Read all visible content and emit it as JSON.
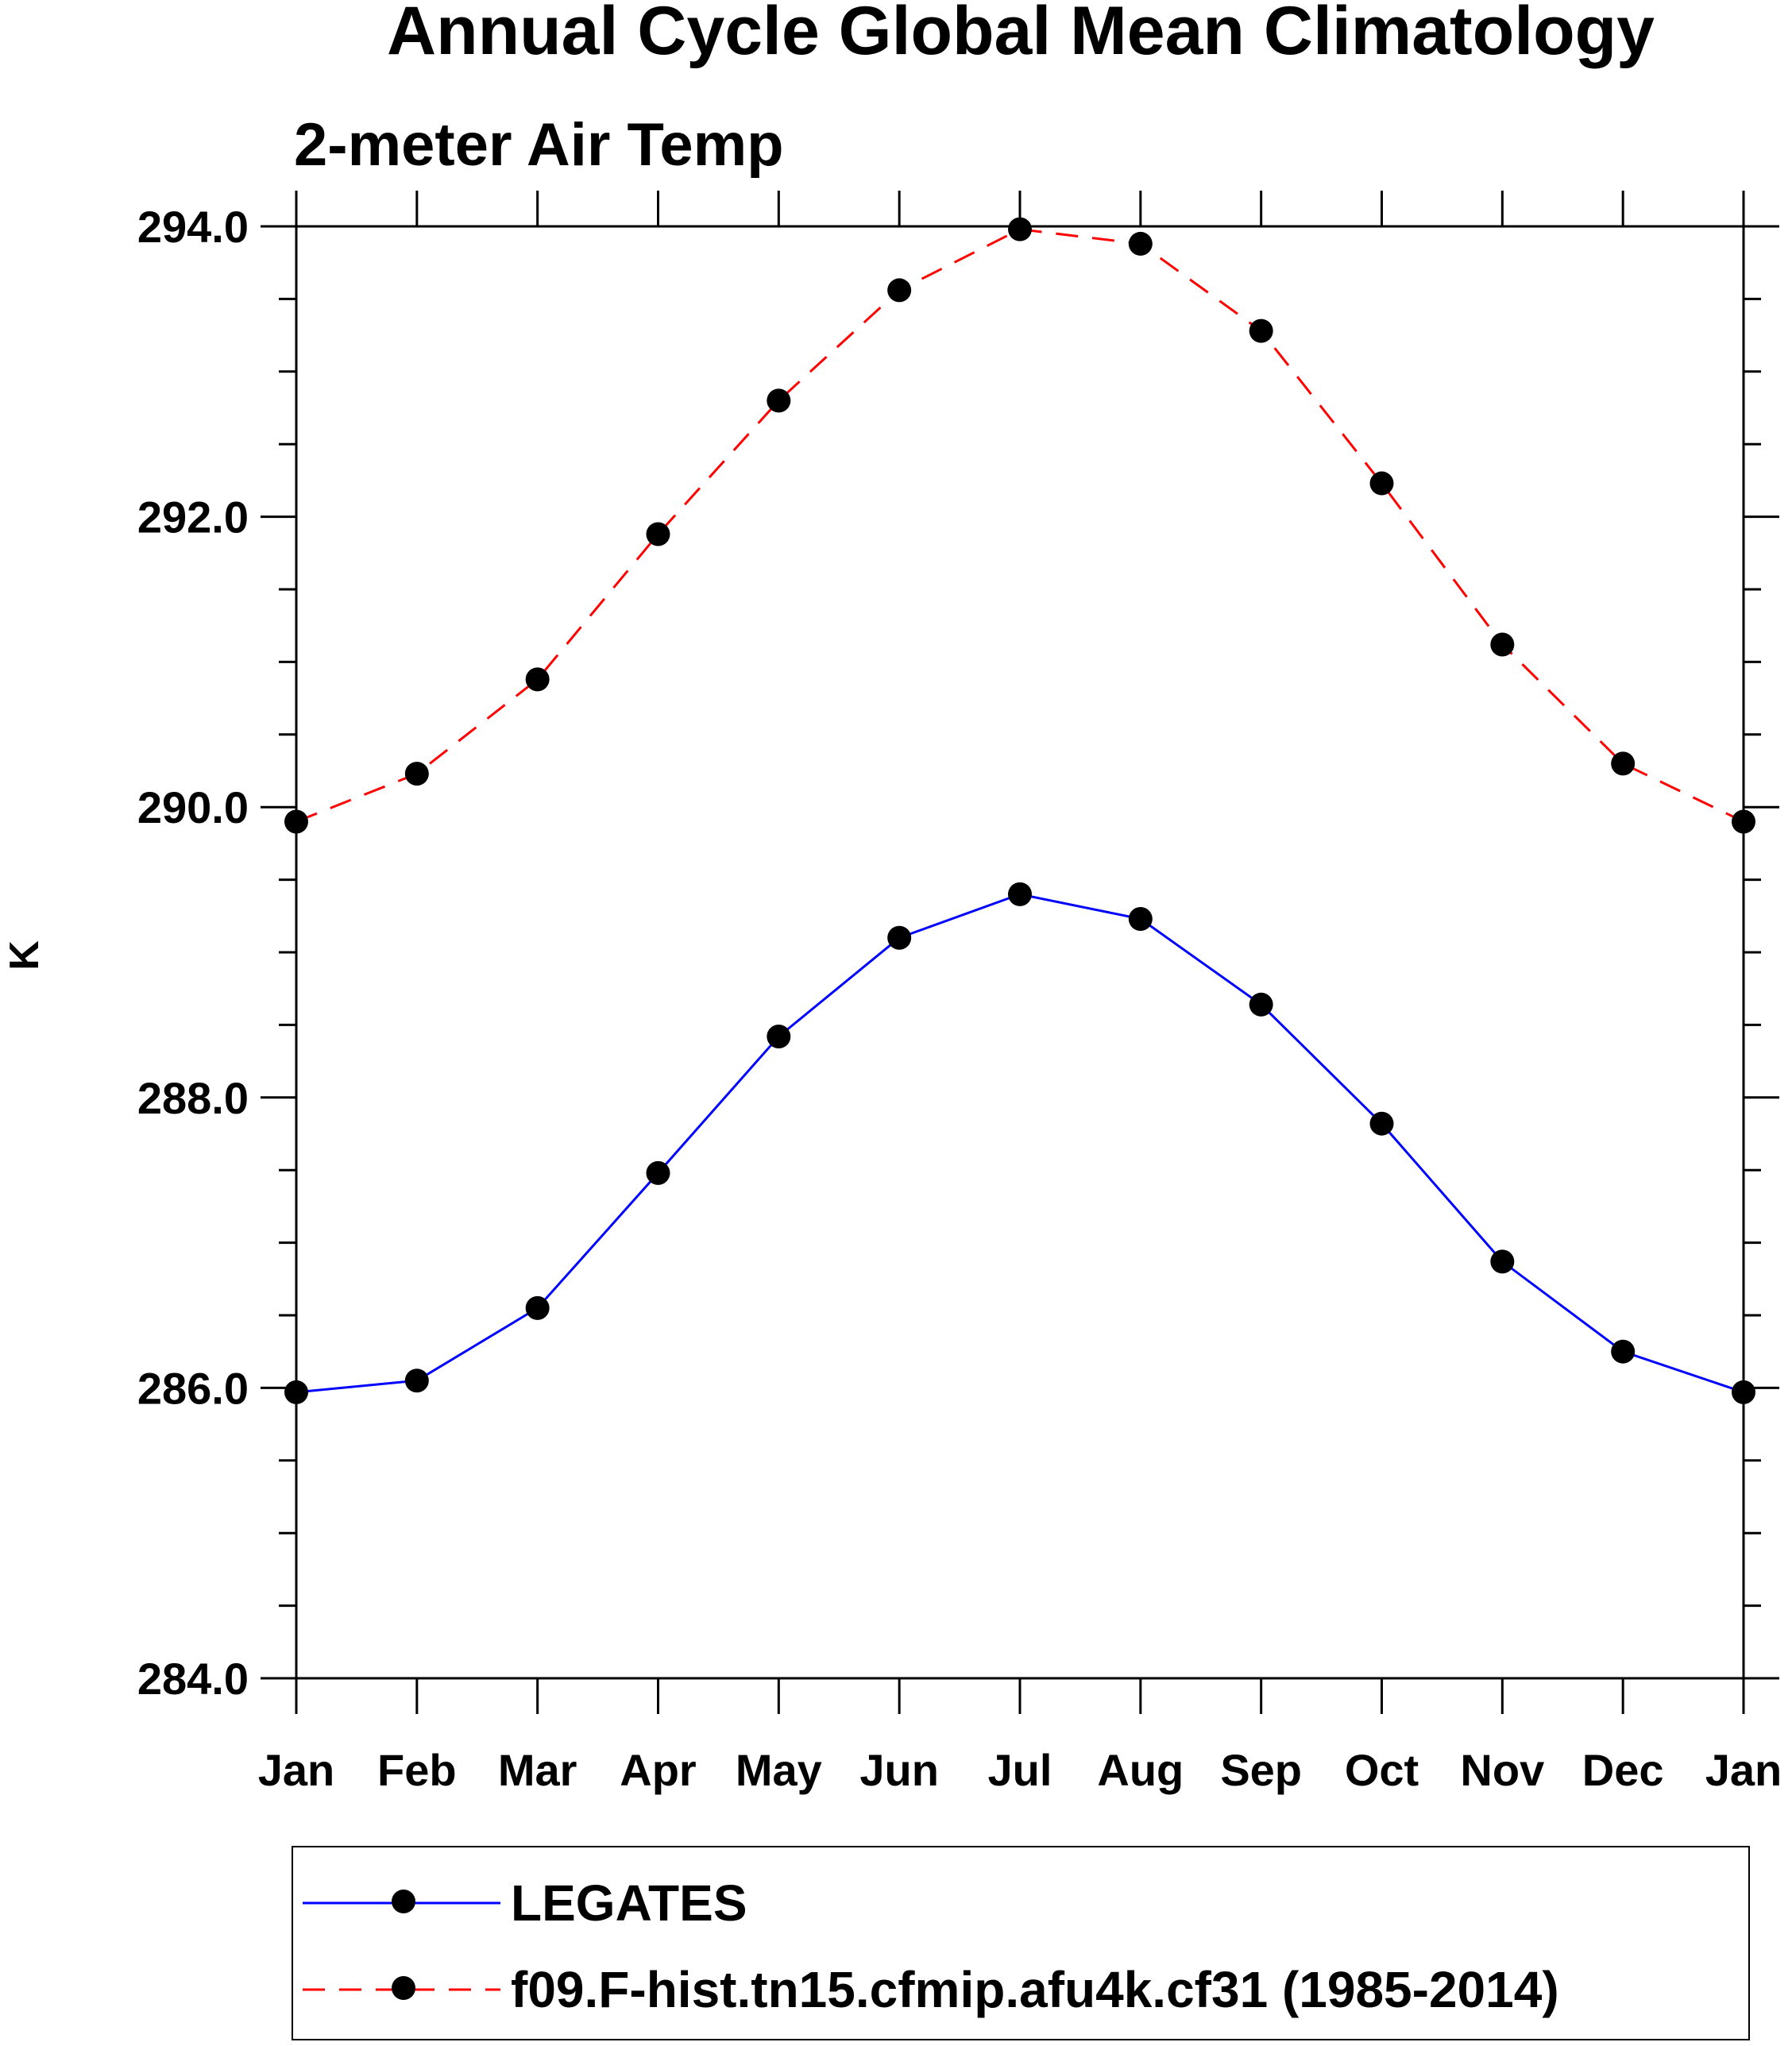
{
  "chart_data": {
    "type": "line",
    "title": "Annual Cycle Global Mean Climatology",
    "subtitle": "2-meter Air Temp",
    "ylabel": "K",
    "xlabel": "",
    "categories": [
      "Jan",
      "Feb",
      "Mar",
      "Apr",
      "May",
      "Jun",
      "Jul",
      "Aug",
      "Sep",
      "Oct",
      "Nov",
      "Dec",
      "Jan"
    ],
    "ylim": [
      284.0,
      294.0
    ],
    "yticks": [
      "284.0",
      "286.0",
      "288.0",
      "290.0",
      "292.0",
      "294.0"
    ],
    "y_minor_step": 0.5,
    "grid": false,
    "legend_position": "bottom",
    "series": [
      {
        "name": "LEGATES",
        "values": [
          285.97,
          286.05,
          286.55,
          287.48,
          288.42,
          289.1,
          289.4,
          289.23,
          288.64,
          287.82,
          286.87,
          286.25,
          285.97
        ],
        "color": "#0000ff",
        "dash": "solid",
        "marker": "circle"
      },
      {
        "name": "f09.F-hist.tn15.cfmip.afu4k.cf31 (1985-2014)",
        "values": [
          289.9,
          290.23,
          290.88,
          291.88,
          292.8,
          293.56,
          293.98,
          293.88,
          293.28,
          292.23,
          291.12,
          290.3,
          289.9
        ],
        "color": "#ff0000",
        "dash": "dashed",
        "marker": "circle"
      }
    ]
  }
}
